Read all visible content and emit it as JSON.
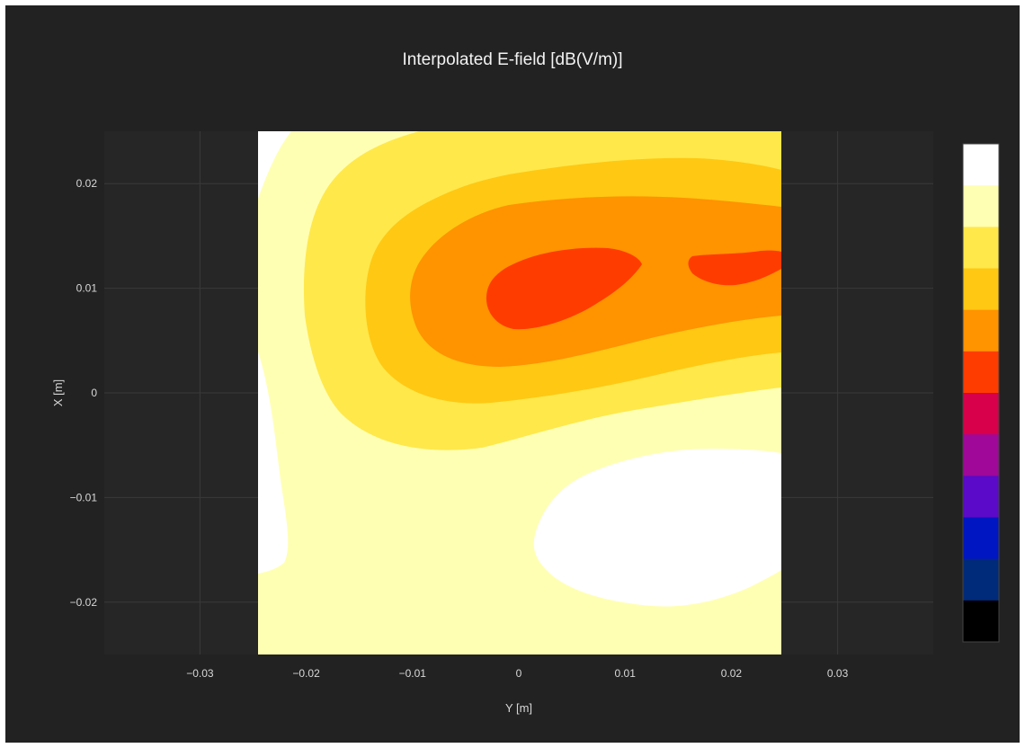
{
  "chart_data": {
    "type": "contour",
    "title": "Interpolated E-field [dB(V/m)]",
    "xlabel": "Y [m]",
    "ylabel": "X [m]",
    "xlim": [
      -0.039,
      0.039
    ],
    "ylim": [
      -0.025,
      0.025
    ],
    "x_ticks": [
      -0.03,
      -0.02,
      -0.01,
      0,
      0.01,
      0.02,
      0.03
    ],
    "x_tick_labels": [
      "−0.03",
      "−0.02",
      "−0.01",
      "0",
      "0.01",
      "0.02",
      "0.03"
    ],
    "y_ticks": [
      0.02,
      0.01,
      0,
      -0.01,
      -0.02
    ],
    "y_tick_labels": [
      "0.02",
      "0.01",
      "0",
      "−0.01",
      "−0.02"
    ],
    "data_extent": {
      "y": [
        -0.025,
        0.025
      ],
      "x": [
        -0.025,
        0.025
      ]
    },
    "grid": true,
    "background": "#222222",
    "colorscale": [
      "#000000",
      "#002a7a",
      "#0016c2",
      "#5a0ac8",
      "#a0089a",
      "#d8004a",
      "#ff3c00",
      "#ff9300",
      "#ffc813",
      "#ffe84a",
      "#ffffb4",
      "#ffffff"
    ],
    "contour_levels": [
      {
        "level_index": 10,
        "color": "#ffffb4",
        "region": "fills most of the map outside the central lobe"
      },
      {
        "level_index": 9,
        "color": "#ffe84a",
        "region": "band around the upper lobe, X ≈ 0.005…0.025"
      },
      {
        "level_index": 8,
        "color": "#ffc813",
        "region": "band around the main lobe, Y ≈ -0.012…0.025"
      },
      {
        "level_index": 7,
        "color": "#ff9300",
        "region": "core lobe, Y ≈ -0.010…0.025, X ≈ 0.003…0.018"
      },
      {
        "level_index": 6,
        "color": "#ff3c00",
        "region": "peaks near (Y 0.004, X 0.011) and (Y 0.021, X 0.012)"
      },
      {
        "level_index": 11,
        "color": "#ffffff",
        "region": "minima near (Y 0.015, X -0.015) and top-left / left-edge corners"
      }
    ]
  }
}
